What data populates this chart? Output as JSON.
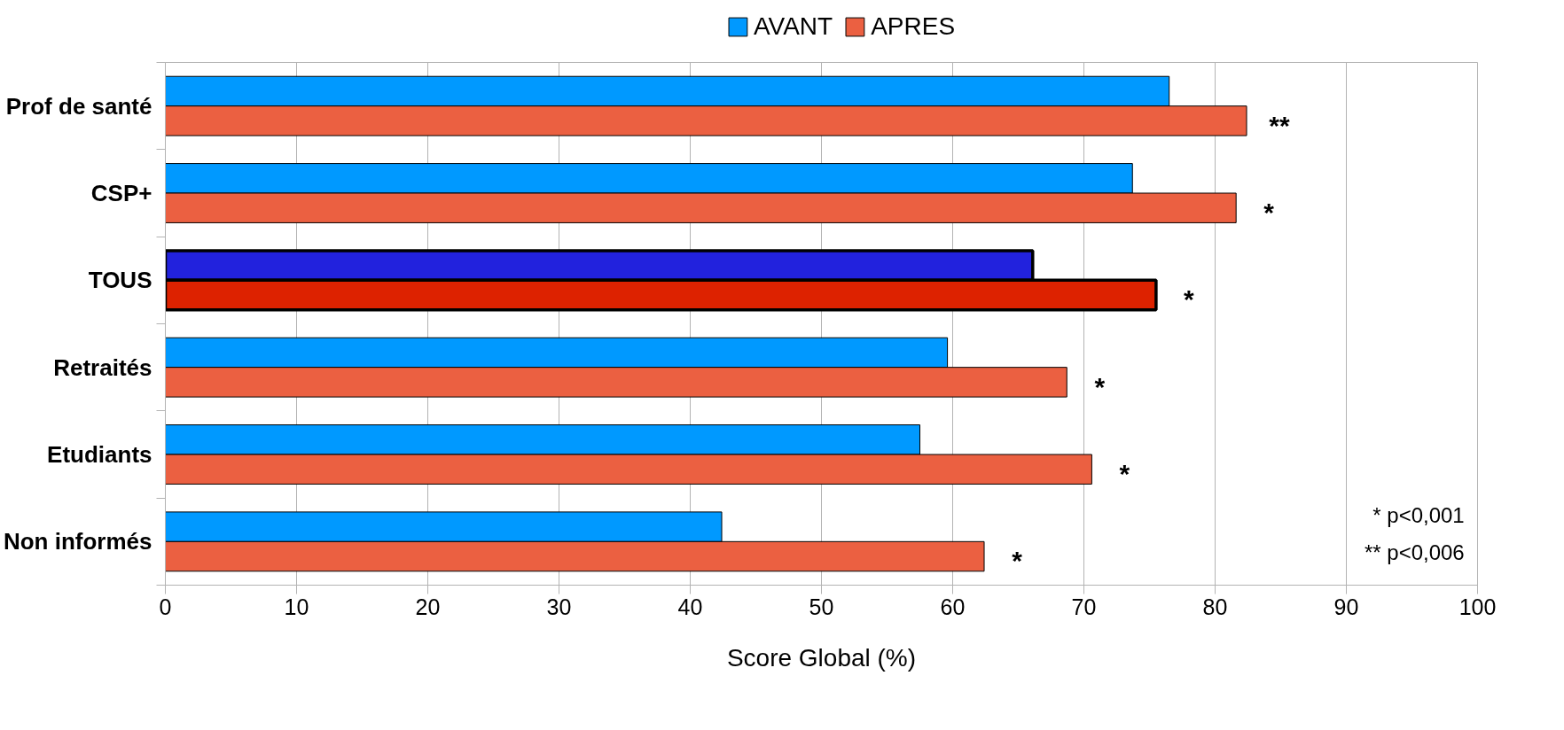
{
  "chart_data": {
    "type": "bar",
    "orientation": "horizontal",
    "xlabel": "Score Global (%)",
    "categories": [
      "Prof de santé",
      "CSP+",
      "TOUS",
      "Retraités",
      "Etudiants",
      "Non informés"
    ],
    "series": [
      {
        "name": "AVANT",
        "color": "#0099ff",
        "colors": [
          "#0099ff",
          "#0099ff",
          "#2222dd",
          "#0099ff",
          "#0099ff",
          "#0099ff"
        ],
        "values": [
          76.5,
          73.7,
          66.1,
          59.6,
          57.5,
          42.4
        ]
      },
      {
        "name": "APRES",
        "color": "#eb6041",
        "colors": [
          "#eb6041",
          "#eb6041",
          "#dd2200",
          "#eb6041",
          "#eb6041",
          "#eb6041"
        ],
        "values": [
          82.4,
          81.6,
          75.5,
          68.7,
          70.6,
          62.4
        ]
      }
    ],
    "xlim": [
      0,
      100
    ],
    "xticks": [
      0,
      10,
      20,
      30,
      40,
      50,
      60,
      70,
      80,
      90,
      100
    ],
    "grid": "x",
    "legend": "top",
    "annotations": [
      "**",
      "*",
      "*",
      "*",
      "*",
      "*",
      "* p<0,001",
      "** p<0,006"
    ]
  }
}
